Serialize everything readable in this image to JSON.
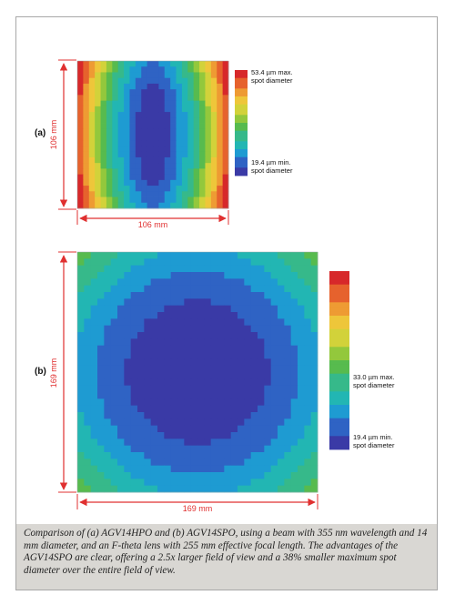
{
  "panels": [
    {
      "label": "(a)",
      "width_label": "106 mm",
      "height_label": "106 mm",
      "legend_max": [
        "53.4 µm max.",
        "spot diameter"
      ],
      "legend_min": [
        "19.4 µm min.",
        "spot diameter"
      ],
      "field_shape": "elongated-vertical"
    },
    {
      "label": "(b)",
      "width_label": "169 mm",
      "height_label": "169 mm",
      "legend_max": [
        "33.0 µm max.",
        "spot diameter"
      ],
      "legend_min": [
        "19.4 µm min.",
        "spot diameter"
      ],
      "field_shape": "circular"
    }
  ],
  "colormap": [
    "#3a3aa6",
    "#2f63c4",
    "#1e9bd2",
    "#22b6b3",
    "#36b98a",
    "#57bb4e",
    "#93c83c",
    "#d2d23a",
    "#eec63a",
    "#ee9b33",
    "#e6622d",
    "#d7282a"
  ],
  "dimension_color": "#e03030",
  "caption": "Comparison of (a) AGV14HPO and (b) AGV14SPO, using a beam with 355 nm wavelength and 14 mm diameter, and an F-theta lens with 255 mm effective focal length. The advantages of the AGV14SPO are clear, offering a 2.5x larger field of view and a 38% smaller maximum spot diameter over the entire field of view."
}
